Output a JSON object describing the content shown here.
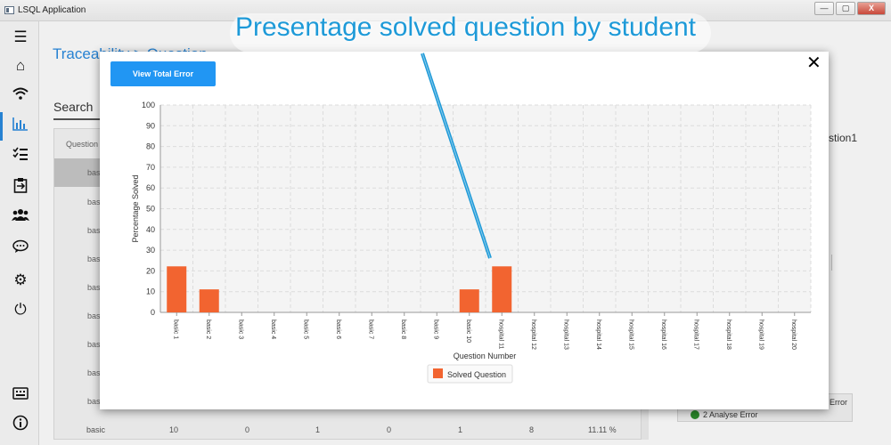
{
  "window": {
    "title": "LSQL Application",
    "buttons": [
      "—",
      "▢",
      "X"
    ]
  },
  "nav": {
    "icons": [
      "menu-icon",
      "home-icon",
      "wifi-icon",
      "bar-chart-icon",
      "checklist-icon",
      "clipboard-icon",
      "users-icon",
      "chat-icon",
      "settings-icon",
      "power-icon",
      "keyboard-icon",
      "info-icon"
    ],
    "active": "bar-chart-icon"
  },
  "background": {
    "breadcrumb": "Traceability > Question",
    "search_tab": "Search",
    "table_header": "Question",
    "rows": [
      "basic",
      "basic",
      "basic",
      "basic",
      "basic",
      "basic",
      "basic",
      "basic",
      "basic"
    ],
    "bottom_row": [
      "basic",
      "10",
      "0",
      "1",
      "0",
      "1",
      "8",
      "11.11 %"
    ],
    "right_label": "stion1",
    "error_label_1": "Error",
    "error_label_2": "2 Analyse Error"
  },
  "modal": {
    "button_label": "View Total Error",
    "close_label": "✕"
  },
  "callout": {
    "text": "Presentage solved question by student"
  },
  "chart_data": {
    "type": "bar",
    "categories": [
      "basic 1",
      "basic 2",
      "basic 3",
      "basic 4",
      "basic 5",
      "basic 6",
      "basic 7",
      "basic 8",
      "basic 9",
      "basic 10",
      "hospital 11",
      "hospital 12",
      "hospital 13",
      "hospital 14",
      "hospital 15",
      "hospital 16",
      "hospital 17",
      "hospital 18",
      "hospital 19",
      "hospital 20"
    ],
    "series": [
      {
        "name": "Solved Question",
        "values": [
          22.2,
          11.1,
          0,
          0,
          0,
          0,
          0,
          0,
          0,
          11.1,
          22.2,
          0,
          0,
          0,
          0,
          0,
          0,
          0,
          0,
          0
        ],
        "color": "#f26430"
      }
    ],
    "xlabel": "Question Number",
    "ylabel": "Percentage Solved",
    "ylim": [
      0,
      100
    ],
    "yticks": [
      0,
      10,
      20,
      30,
      40,
      50,
      60,
      70,
      80,
      90,
      100
    ],
    "grid": true,
    "legend": "bottom"
  }
}
